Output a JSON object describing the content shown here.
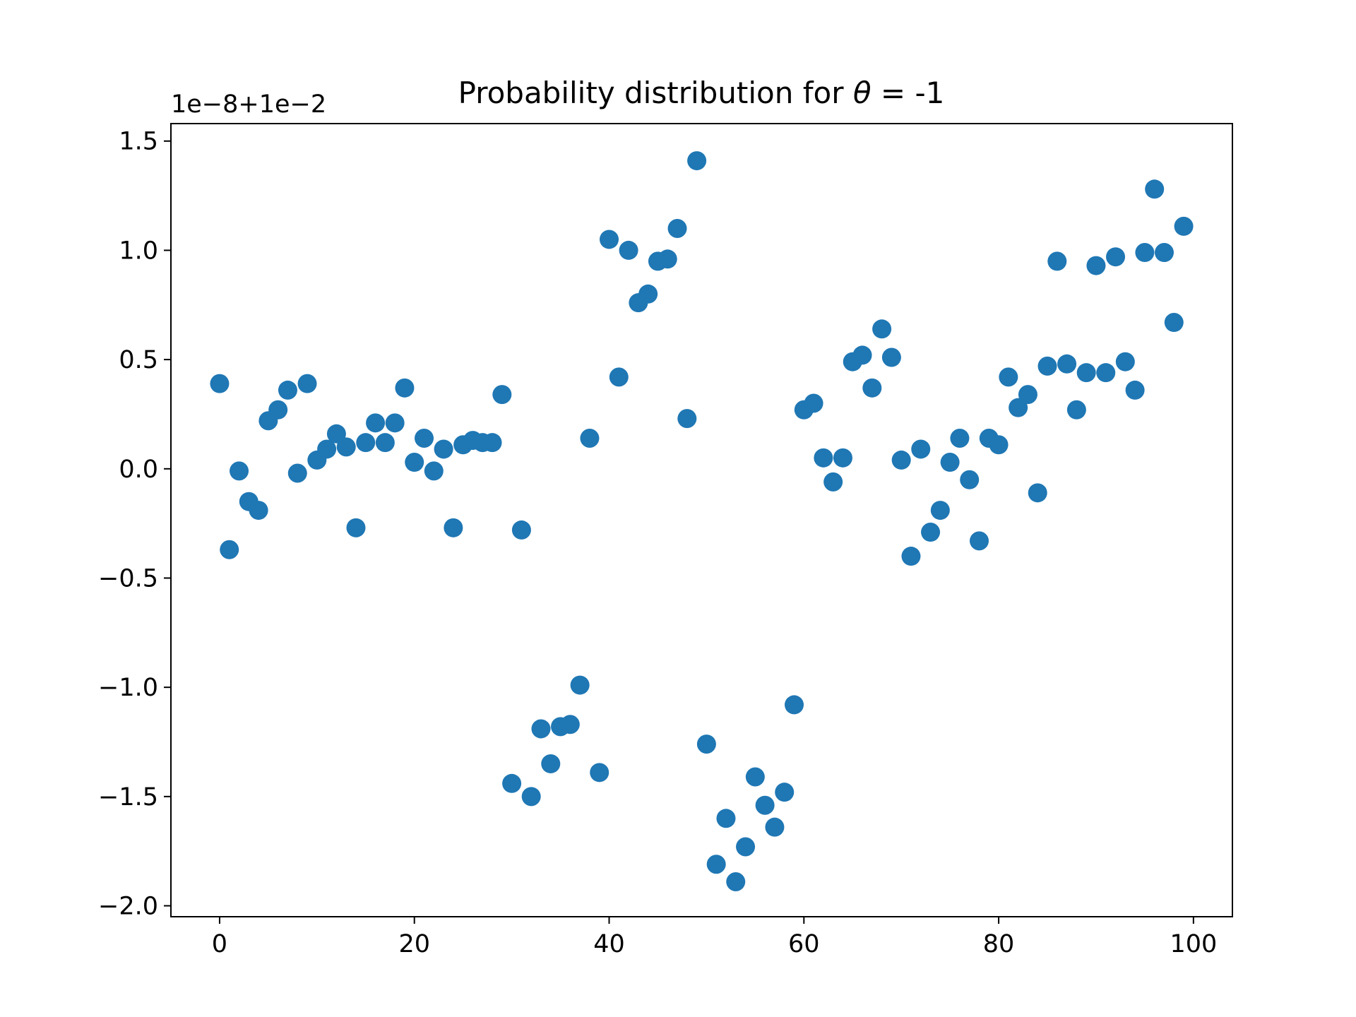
{
  "chart_data": {
    "type": "scatter",
    "title_prefix": "Probability distribution for ",
    "title_symbol": "θ",
    "title_eq": " = ",
    "title_value": "-1",
    "y_offset_label": "1e−8+1e−2",
    "xlim": [
      -5,
      104
    ],
    "ylim": [
      -2.05,
      1.58
    ],
    "xticks": [
      {
        "value": 0,
        "label": "0"
      },
      {
        "value": 20,
        "label": "20"
      },
      {
        "value": 40,
        "label": "40"
      },
      {
        "value": 60,
        "label": "60"
      },
      {
        "value": 80,
        "label": "80"
      },
      {
        "value": 100,
        "label": "100"
      }
    ],
    "yticks": [
      {
        "value": 1.5,
        "label": "1.5"
      },
      {
        "value": 1.0,
        "label": "1.0"
      },
      {
        "value": 0.5,
        "label": "0.5"
      },
      {
        "value": 0.0,
        "label": "0.0"
      },
      {
        "value": -0.5,
        "label": "−0.5"
      },
      {
        "value": -1.0,
        "label": "−1.0"
      },
      {
        "value": -1.5,
        "label": "−1.5"
      },
      {
        "value": -2.0,
        "label": "−2.0"
      }
    ],
    "grid": false,
    "marker_color": "#1f77b4",
    "x": [
      0,
      1,
      2,
      3,
      4,
      5,
      6,
      7,
      8,
      9,
      10,
      11,
      12,
      13,
      14,
      15,
      16,
      17,
      18,
      19,
      20,
      21,
      22,
      23,
      24,
      25,
      26,
      27,
      28,
      29,
      30,
      31,
      32,
      33,
      34,
      35,
      36,
      37,
      38,
      39,
      40,
      41,
      42,
      43,
      44,
      45,
      46,
      47,
      48,
      49,
      50,
      51,
      52,
      53,
      54,
      55,
      56,
      57,
      58,
      59,
      60,
      61,
      62,
      63,
      64,
      65,
      66,
      67,
      68,
      69,
      70,
      71,
      72,
      73,
      74,
      75,
      76,
      77,
      78,
      79,
      80,
      81,
      82,
      83,
      84,
      85,
      86,
      87,
      88,
      89,
      90,
      91,
      92,
      93,
      94,
      95,
      96,
      97,
      98,
      99
    ],
    "y": [
      0.39,
      -0.37,
      -0.01,
      -0.15,
      -0.19,
      0.22,
      0.27,
      0.36,
      -0.02,
      0.39,
      0.04,
      0.09,
      0.16,
      0.1,
      -0.27,
      0.12,
      0.21,
      0.12,
      0.21,
      0.37,
      0.03,
      0.14,
      -0.01,
      0.09,
      -0.27,
      0.11,
      0.13,
      0.12,
      0.12,
      0.34,
      -1.44,
      -0.28,
      -1.5,
      -1.19,
      -1.35,
      -1.18,
      -1.17,
      -0.99,
      0.14,
      -1.39,
      1.05,
      0.42,
      1.0,
      0.76,
      0.8,
      0.95,
      0.96,
      1.1,
      0.23,
      1.41,
      -1.26,
      -1.81,
      -1.6,
      -1.89,
      -1.73,
      -1.41,
      -1.54,
      -1.64,
      -1.48,
      -1.08,
      0.27,
      0.3,
      0.05,
      -0.06,
      0.05,
      0.49,
      0.52,
      0.37,
      0.64,
      0.51,
      0.04,
      -0.4,
      0.09,
      -0.29,
      -0.19,
      0.03,
      0.14,
      -0.05,
      -0.33,
      0.14,
      0.11,
      0.42,
      0.28,
      0.34,
      -0.11,
      0.47,
      0.95,
      0.48,
      0.27,
      0.44,
      0.93,
      0.44,
      0.97,
      0.49,
      0.36,
      0.99,
      1.28,
      0.99,
      0.67,
      1.11
    ]
  }
}
